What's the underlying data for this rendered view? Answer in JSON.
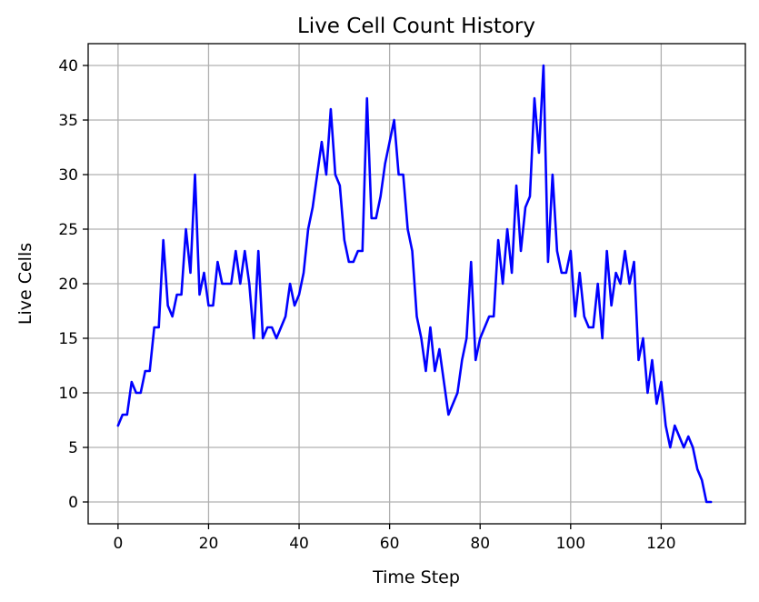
{
  "chart_data": {
    "type": "line",
    "title": "Live Cell Count History",
    "xlabel": "Time Step",
    "ylabel": "Live Cells",
    "xlim": [
      -6.6,
      138.6
    ],
    "ylim": [
      -2,
      42
    ],
    "xticks": [
      0,
      20,
      40,
      60,
      80,
      100,
      120
    ],
    "yticks": [
      0,
      5,
      10,
      15,
      20,
      25,
      30,
      35,
      40
    ],
    "grid": true,
    "series_color": "#0000ff",
    "series": [
      {
        "values": [
          7,
          8,
          8,
          11,
          10,
          10,
          12,
          12,
          16,
          16,
          24,
          18,
          17,
          19,
          19,
          25,
          21,
          30,
          19,
          21,
          18,
          18,
          22,
          20,
          20,
          20,
          23,
          20,
          23,
          20,
          15,
          23,
          15,
          16,
          16,
          15,
          16,
          17,
          20,
          18,
          19,
          21,
          25,
          27,
          30,
          33,
          30,
          36,
          30,
          29,
          24,
          22,
          22,
          23,
          23,
          37,
          26,
          26,
          28,
          31,
          33,
          35,
          30,
          30,
          25,
          23,
          17,
          15,
          12,
          16,
          12,
          14,
          11,
          8,
          9,
          10,
          13,
          15,
          22,
          13,
          15,
          16,
          17,
          17,
          24,
          20,
          25,
          21,
          29,
          23,
          27,
          28,
          37,
          32,
          40,
          22,
          30,
          23,
          21,
          21,
          23,
          17,
          21,
          17,
          16,
          16,
          20,
          15,
          23,
          18,
          21,
          20,
          23,
          20,
          22,
          13,
          15,
          10,
          13,
          9,
          11,
          7,
          5,
          7,
          6,
          5,
          6,
          5,
          3,
          2,
          0,
          0
        ]
      }
    ]
  }
}
